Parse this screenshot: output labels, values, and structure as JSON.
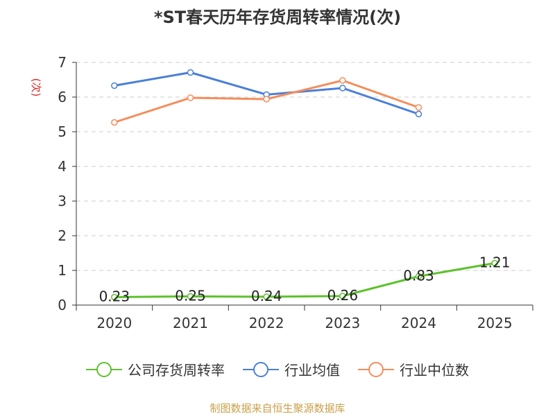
{
  "chart_data": {
    "type": "line",
    "title": "*ST春天历年存货周转率情况(次)",
    "ylabel": "(次)",
    "xlabel": "",
    "categories": [
      "2020",
      "2021",
      "2022",
      "2023",
      "2024",
      "2025"
    ],
    "ylim": [
      0,
      7
    ],
    "yticks": [
      0,
      1,
      2,
      3,
      4,
      5,
      6,
      7
    ],
    "grid": "horizontal dashed",
    "series": [
      {
        "name": "公司存货周转率",
        "color": "#5cc22c",
        "values": [
          0.23,
          0.25,
          0.24,
          0.26,
          0.83,
          1.21
        ],
        "labels": [
          "0.23",
          "0.25",
          "0.24",
          "0.26",
          "0.83",
          "1.21"
        ]
      },
      {
        "name": "行业均值",
        "color": "#4a7fd8",
        "values": [
          6.33,
          6.71,
          6.07,
          6.26,
          5.51,
          null
        ]
      },
      {
        "name": "行业中位数",
        "color": "#f58d5b",
        "values": [
          5.27,
          5.98,
          5.94,
          6.48,
          5.7,
          null
        ]
      }
    ],
    "legend_position": "bottom",
    "source": "制图数据来自恒生聚源数据库"
  }
}
